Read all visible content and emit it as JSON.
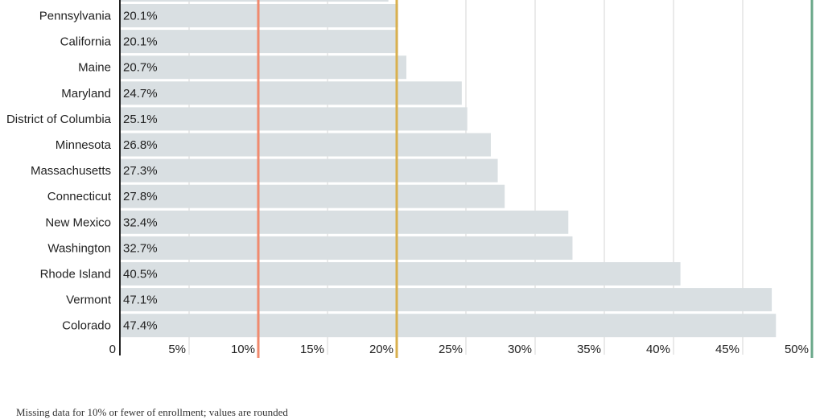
{
  "chart_data": {
    "type": "bar",
    "orientation": "horizontal",
    "categories": [
      "Pennsylvania",
      "California",
      "Maine",
      "Maryland",
      "District of Columbia",
      "Minnesota",
      "Massachusetts",
      "Connecticut",
      "New Mexico",
      "Washington",
      "Rhode Island",
      "Vermont",
      "Colorado"
    ],
    "values": [
      20.1,
      20.1,
      20.7,
      24.7,
      25.1,
      26.8,
      27.3,
      27.8,
      32.4,
      32.7,
      40.5,
      47.1,
      47.4
    ],
    "value_labels": [
      "20.1%",
      "20.1%",
      "20.7%",
      "24.7%",
      "25.1%",
      "26.8%",
      "27.3%",
      "27.8%",
      "32.4%",
      "32.7%",
      "40.5%",
      "47.1%",
      "47.4%"
    ],
    "partial_bar_above_value": 19.4,
    "xlim": [
      0,
      50
    ],
    "x_ticks": [
      0,
      5,
      10,
      15,
      20,
      25,
      30,
      35,
      40,
      45,
      50
    ],
    "x_tick_labels": [
      "0",
      "5%",
      "10%",
      "15%",
      "20%",
      "25%",
      "30%",
      "35%",
      "40%",
      "45%",
      "50%"
    ],
    "reference_lines": [
      {
        "value": 10,
        "color": "#f08a6e"
      },
      {
        "value": 20,
        "color": "#d9b04f"
      },
      {
        "value": 50,
        "color": "#6aa88a"
      }
    ],
    "grid": true,
    "bar_color": "#d9dfe2",
    "title": "",
    "xlabel": "",
    "ylabel": ""
  },
  "footnote": "Missing data for 10% or fewer of enrollment; values are rounded"
}
